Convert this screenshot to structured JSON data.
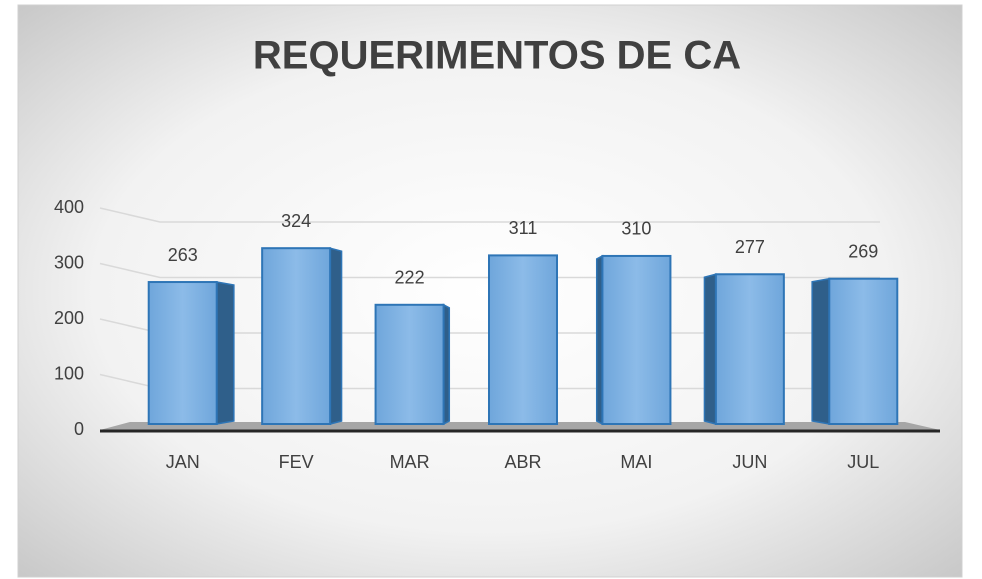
{
  "chart_data": {
    "type": "bar",
    "title": "REQUERIMENTOS DE CA",
    "categories": [
      "JAN",
      "FEV",
      "MAR",
      "ABR",
      "MAI",
      "JUN",
      "JUL"
    ],
    "values": [
      263,
      324,
      222,
      311,
      310,
      277,
      269
    ],
    "color": "#5b9bd5",
    "ylim": [
      0,
      400
    ],
    "yticks": [
      0,
      100,
      200,
      300,
      400
    ],
    "grid": true
  }
}
